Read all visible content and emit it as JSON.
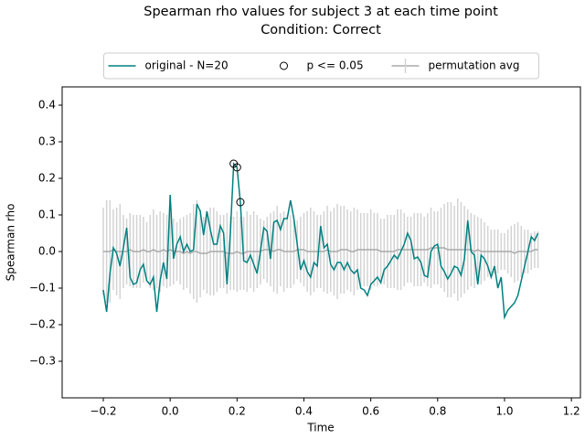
{
  "chart_data": {
    "type": "line",
    "title": "Spearman rho values for subject 3 at each time point",
    "subtitle": "Condition: Correct",
    "x_label": "Time",
    "y_label": "Spearman rho",
    "xlim": [
      -0.323,
      1.227
    ],
    "ylim": [
      -0.4,
      0.45
    ],
    "xticks": [
      {
        "value": -0.2,
        "label": "−0.2"
      },
      {
        "value": 0,
        "label": "0.0"
      },
      0.2,
      0.4,
      0.6,
      0.8,
      {
        "value": 1,
        "label": "1.0"
      },
      1.2
    ],
    "yticks": [
      {
        "value": -0.3,
        "label": "−0.3"
      },
      {
        "value": -0.2,
        "label": "−0.2"
      },
      {
        "value": -0.1,
        "label": "−0.1"
      },
      {
        "value": 0,
        "label": "0.0"
      },
      0.1,
      0.2,
      0.3,
      0.4
    ],
    "legend": "top-center",
    "x": [
      -0.2,
      -0.19,
      -0.18,
      -0.17,
      -0.16,
      -0.15,
      -0.14,
      -0.13,
      -0.12,
      -0.11,
      -0.1,
      -0.09,
      -0.08,
      -0.07,
      -0.06,
      -0.05,
      -0.04,
      -0.03,
      -0.02,
      -0.01,
      0,
      0.01,
      0.02,
      0.03,
      0.04,
      0.05,
      0.06,
      0.07,
      0.08,
      0.09,
      0.1,
      0.11,
      0.12,
      0.13,
      0.14,
      0.15,
      0.16,
      0.17,
      0.18,
      0.19,
      0.2,
      0.21,
      0.22,
      0.23,
      0.24,
      0.25,
      0.26,
      0.27,
      0.28,
      0.29,
      0.3,
      0.31,
      0.32,
      0.33,
      0.34,
      0.35,
      0.36,
      0.37,
      0.38,
      0.39,
      0.4,
      0.41,
      0.42,
      0.43,
      0.44,
      0.45,
      0.46,
      0.47,
      0.48,
      0.49,
      0.5,
      0.51,
      0.52,
      0.53,
      0.54,
      0.55,
      0.56,
      0.57,
      0.58,
      0.59,
      0.6,
      0.61,
      0.62,
      0.63,
      0.64,
      0.65,
      0.66,
      0.67,
      0.68,
      0.69,
      0.7,
      0.71,
      0.72,
      0.73,
      0.74,
      0.75,
      0.76,
      0.77,
      0.78,
      0.79,
      0.8,
      0.81,
      0.82,
      0.83,
      0.84,
      0.85,
      0.86,
      0.87,
      0.88,
      0.89,
      0.9,
      0.91,
      0.92,
      0.93,
      0.94,
      0.95,
      0.96,
      0.97,
      0.98,
      0.99,
      1,
      1.01,
      1.02,
      1.03,
      1.04,
      1.05,
      1.06,
      1.07,
      1.08,
      1.09,
      1.1
    ],
    "series": [
      {
        "name": "permutation avg",
        "style": "errorbar",
        "color": "#aaaaaa",
        "error_color": "#d3d3d3",
        "values": [
          0,
          0,
          0,
          0.005,
          0,
          0,
          0,
          0,
          0.005,
          0,
          0,
          0,
          0.005,
          0,
          0,
          0.005,
          0,
          0,
          0.005,
          0,
          0.005,
          0,
          0,
          0,
          -0.005,
          0,
          -0.005,
          0,
          0,
          -0.005,
          -0.005,
          -0.005,
          0,
          0,
          0,
          0,
          0,
          -0.005,
          -0.005,
          -0.005,
          0,
          -0.005,
          -0.005,
          0,
          0,
          0,
          0,
          0,
          0.005,
          0.005,
          0.005,
          0,
          0.005,
          0.005,
          0,
          0,
          0,
          0,
          0.005,
          0.005,
          0.005,
          0,
          0,
          0,
          0,
          0,
          0,
          0.005,
          0,
          0,
          0,
          0.005,
          0.005,
          0.005,
          0,
          0,
          0.005,
          0.005,
          0.005,
          0.005,
          0.005,
          0.005,
          0.005,
          0,
          0,
          0,
          0,
          0,
          0.005,
          0.005,
          0.005,
          0.005,
          0.005,
          0.005,
          0.005,
          0.005,
          0.005,
          0.005,
          0.01,
          0.01,
          0.01,
          0.01,
          0.01,
          0.005,
          0.005,
          0.005,
          0.005,
          0.005,
          0.005,
          0.005,
          0.005,
          0,
          0.005,
          0,
          0,
          0,
          0,
          0,
          0,
          0,
          0,
          0,
          0,
          -0.005,
          0,
          0,
          0,
          0,
          0,
          0.005,
          0.005
        ],
        "errors": [
          0.12,
          0.14,
          0.14,
          0.11,
          0.12,
          0.13,
          0.1,
          0.09,
          0.1,
          0.1,
          0.1,
          0.1,
          0.09,
          0.08,
          0.1,
          0.11,
          0.1,
          0.11,
          0.1,
          0.1,
          0.1,
          0.09,
          0.08,
          0.09,
          0.1,
          0.1,
          0.11,
          0.13,
          0.14,
          0.12,
          0.1,
          0.11,
          0.12,
          0.12,
          0.11,
          0.1,
          0.1,
          0.11,
          0.1,
          0.1,
          0.11,
          0.1,
          0.1,
          0.11,
          0.1,
          0.11,
          0.1,
          0.09,
          0.08,
          0.09,
          0.1,
          0.11,
          0.12,
          0.1,
          0.11,
          0.1,
          0.1,
          0.09,
          0.08,
          0.09,
          0.1,
          0.11,
          0.12,
          0.11,
          0.1,
          0.1,
          0.11,
          0.12,
          0.11,
          0.12,
          0.13,
          0.12,
          0.12,
          0.11,
          0.11,
          0.12,
          0.11,
          0.1,
          0.1,
          0.1,
          0.11,
          0.1,
          0.1,
          0.09,
          0.09,
          0.1,
          0.1,
          0.1,
          0.11,
          0.11,
          0.1,
          0.09,
          0.09,
          0.1,
          0.1,
          0.1,
          0.09,
          0.1,
          0.11,
          0.1,
          0.1,
          0.11,
          0.12,
          0.13,
          0.13,
          0.12,
          0.14,
          0.13,
          0.12,
          0.11,
          0.1,
          0.1,
          0.09,
          0.09,
          0.08,
          0.07,
          0.06,
          0.06,
          0.06,
          0.05,
          0.05,
          0.06,
          0.07,
          0.08,
          0.08,
          0.07,
          0.06,
          0.06,
          0.05,
          0.05,
          0.05
        ]
      },
      {
        "name": "original - N=20",
        "style": "line",
        "color": "#008080",
        "values": [
          -0.105,
          -0.165,
          -0.06,
          0.01,
          -0.005,
          -0.04,
          0.01,
          0.065,
          -0.07,
          -0.09,
          -0.085,
          -0.05,
          -0.035,
          -0.08,
          -0.09,
          -0.07,
          -0.165,
          -0.08,
          -0.03,
          -0.075,
          0.155,
          -0.02,
          0.02,
          0.04,
          0,
          0.02,
          0,
          0.005,
          0.13,
          0.11,
          0.045,
          0.11,
          0.06,
          0.02,
          0.02,
          0.07,
          0.05,
          -0.09,
          0.05,
          0.24,
          0.23,
          0.135,
          -0.025,
          -0.03,
          -0.01,
          -0.035,
          -0.06,
          0,
          0.065,
          0.055,
          -0.02,
          0.08,
          0.085,
          0.06,
          0.09,
          0.09,
          0.14,
          0.09,
          0.02,
          -0.05,
          -0.025,
          -0.055,
          -0.07,
          -0.03,
          -0.04,
          0.07,
          0.01,
          0.02,
          -0.035,
          -0.05,
          -0.03,
          -0.03,
          -0.05,
          -0.03,
          -0.05,
          -0.06,
          -0.05,
          -0.1,
          -0.105,
          -0.12,
          -0.09,
          -0.08,
          -0.07,
          -0.085,
          -0.05,
          -0.04,
          -0.025,
          -0.01,
          -0.02,
          0,
          0.02,
          0.05,
          0.03,
          -0.02,
          -0.015,
          -0.03,
          -0.065,
          -0.07,
          0,
          0.015,
          0.02,
          -0.04,
          -0.055,
          -0.075,
          -0.06,
          -0.04,
          -0.045,
          -0.065,
          -0.02,
          0.085,
          0,
          -0.01,
          -0.09,
          -0.01,
          -0.02,
          -0.04,
          -0.07,
          -0.04,
          -0.1,
          -0.07,
          -0.18,
          -0.16,
          -0.15,
          -0.14,
          -0.12,
          -0.08,
          -0.04,
          0,
          0.04,
          0.03,
          0.05
        ]
      },
      {
        "name": "p <= 0.05",
        "style": "marker",
        "color": "#000000",
        "x": [
          0.19,
          0.2,
          0.21
        ],
        "values": [
          0.24,
          0.23,
          0.135
        ]
      }
    ]
  }
}
